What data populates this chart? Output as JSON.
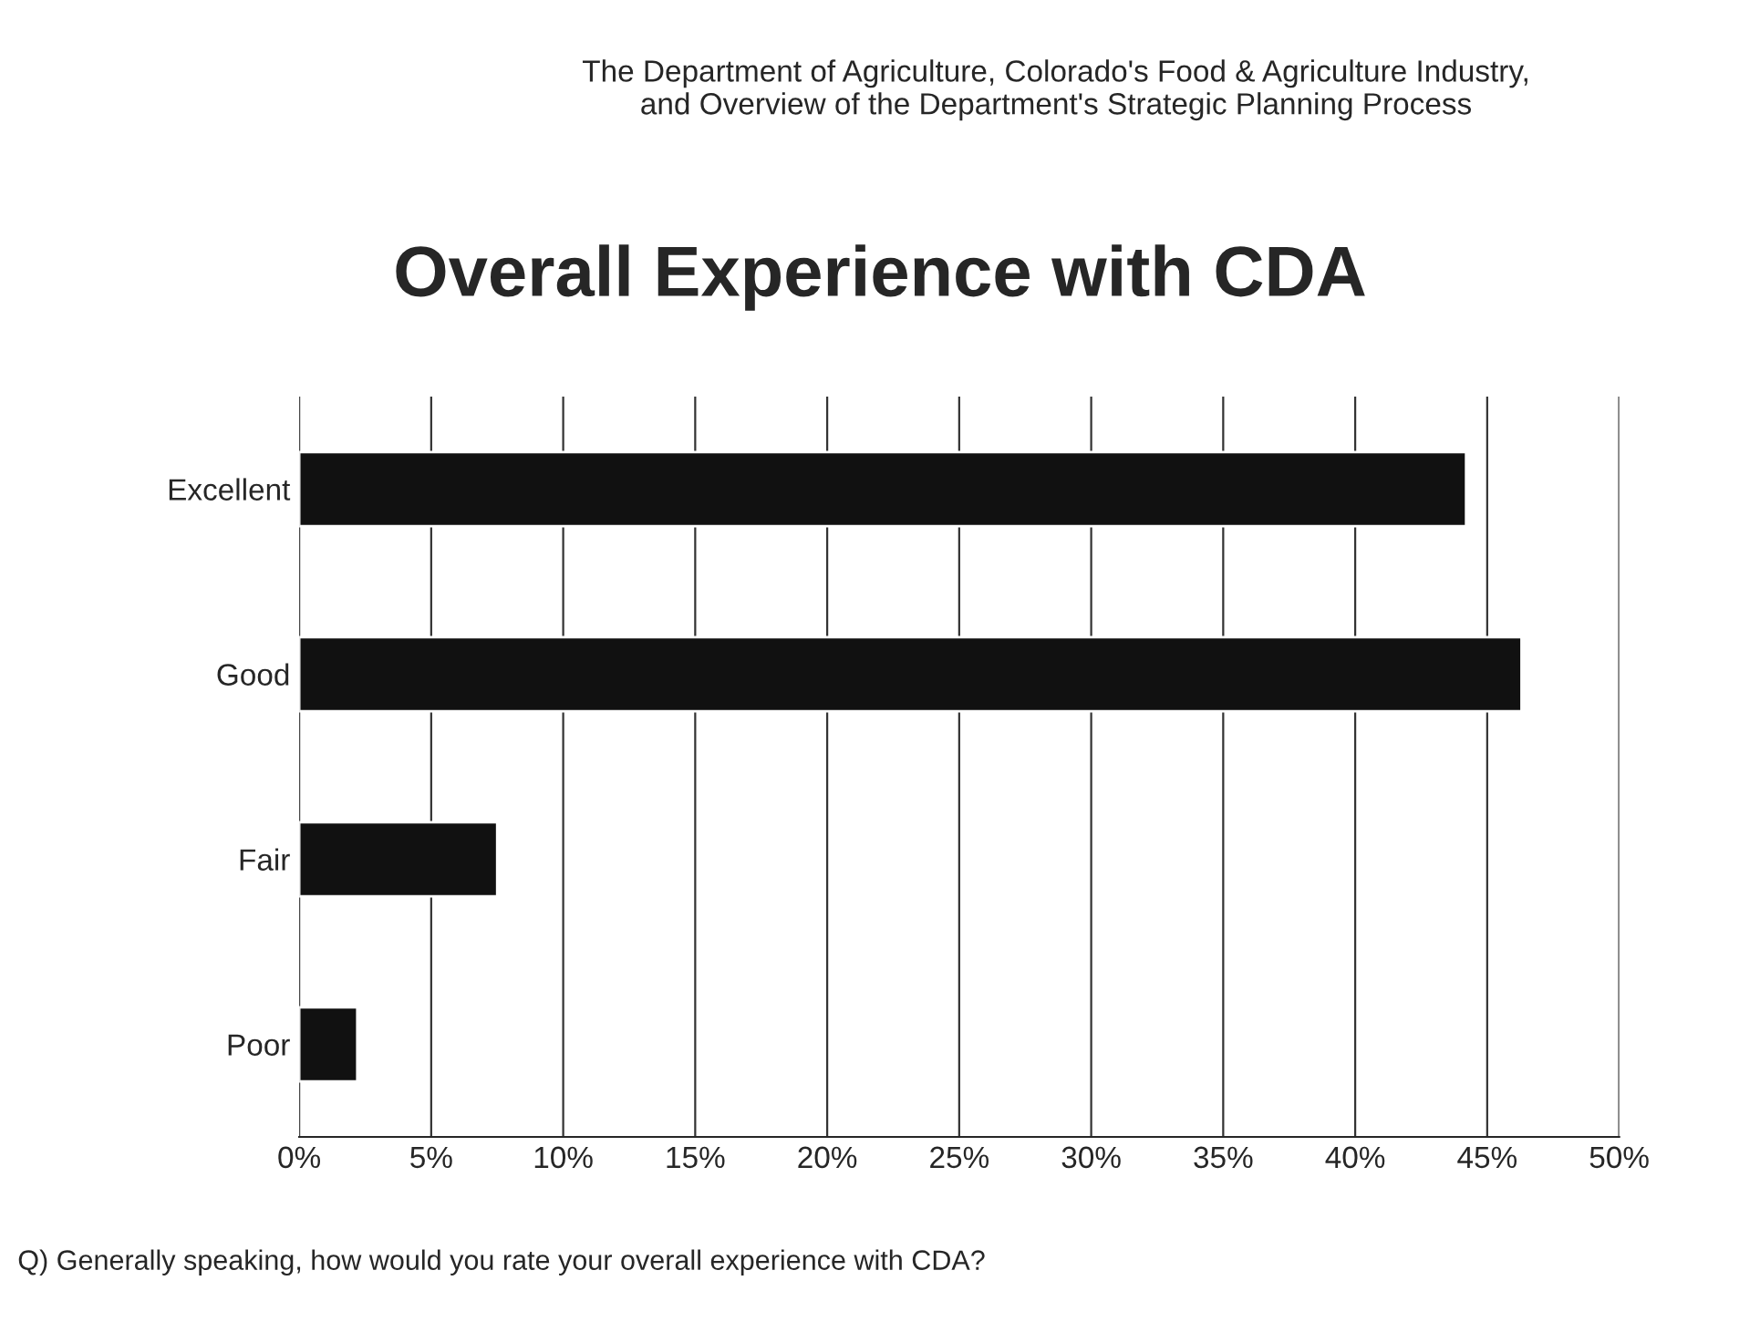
{
  "chart_data": {
    "type": "bar",
    "orientation": "horizontal",
    "subtitle": "The Department of Agriculture, Colorado's Food & Agriculture Industry,\nand Overview of the Department's Strategic Planning Process",
    "title": "Overall Experience with CDA",
    "categories": [
      "Excellent",
      "Good",
      "Fair",
      "Poor"
    ],
    "values": [
      44.2,
      46.3,
      7.5,
      2.2
    ],
    "color": "#111111",
    "xlim": [
      0,
      50
    ],
    "xticks": [
      {
        "value": 0,
        "label": "0%"
      },
      {
        "value": 5,
        "label": "5%"
      },
      {
        "value": 10,
        "label": "10%"
      },
      {
        "value": 15,
        "label": "15%"
      },
      {
        "value": 20,
        "label": "20%"
      },
      {
        "value": 25,
        "label": "25%"
      },
      {
        "value": 30,
        "label": "30%"
      },
      {
        "value": 35,
        "label": "35%"
      },
      {
        "value": 40,
        "label": "40%"
      },
      {
        "value": 45,
        "label": "45%"
      },
      {
        "value": 50,
        "label": "50%"
      }
    ],
    "grid": "x",
    "annotations": [
      "Q) Generally speaking, how would you rate your overall experience with CDA?"
    ]
  }
}
